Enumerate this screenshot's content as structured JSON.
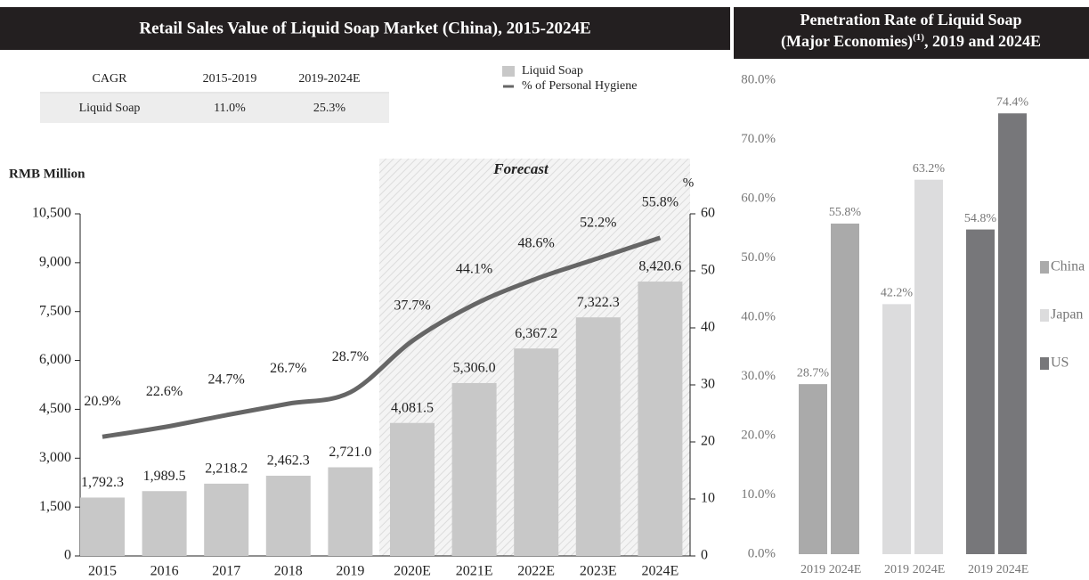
{
  "chart_data": [
    {
      "type": "bar",
      "title": "Retail Sales Value of Liquid Soap Market (China), 2015-2024E",
      "y_label": "RMB Million",
      "y2_label": "%",
      "annotation": "Forecast",
      "categories": [
        "2015",
        "2016",
        "2017",
        "2018",
        "2019",
        "2020E",
        "2021E",
        "2022E",
        "2023E",
        "2024E"
      ],
      "series": [
        {
          "name": "Liquid Soap",
          "color": "#c8c8c8",
          "values": [
            1792.3,
            1989.5,
            2218.2,
            2462.3,
            2721.0,
            4081.5,
            5306.0,
            6367.2,
            7322.3,
            8420.6
          ],
          "value_labels": [
            "1,792.3",
            "1,989.5",
            "2,218.2",
            "2,462.3",
            "2,721.0",
            "4,081.5",
            "5,306.0",
            "6,367.2",
            "7,322.3",
            "8,420.6"
          ]
        },
        {
          "name": "% of Personal Hygiene",
          "type": "line",
          "axis": "y2",
          "color": "#666666",
          "values": [
            20.9,
            22.6,
            24.7,
            26.7,
            28.7,
            37.7,
            44.1,
            48.6,
            52.2,
            55.8
          ],
          "value_labels": [
            "20.9%",
            "22.6%",
            "24.7%",
            "26.7%",
            "28.7%",
            "37.7%",
            "44.1%",
            "48.6%",
            "52.2%",
            "55.8%"
          ]
        }
      ],
      "ylim": [
        0,
        10500
      ],
      "yticks": [
        0,
        {
          "value": 1500,
          "label": "1,500"
        },
        {
          "value": 3000,
          "label": "3,000"
        },
        {
          "value": 4500,
          "label": "4,500"
        },
        {
          "value": 6000,
          "label": "6,000"
        },
        {
          "value": 7500,
          "label": "7,500"
        },
        {
          "value": 9000,
          "label": "9,000"
        },
        {
          "value": 10500,
          "label": "10,500"
        }
      ],
      "y2lim": [
        0,
        60
      ],
      "y2ticks": [
        0,
        10,
        20,
        30,
        40,
        50,
        60
      ],
      "table": {
        "header": [
          "CAGR",
          "2015-2019",
          "2019-2024E"
        ],
        "rows": [
          [
            "Liquid Soap",
            "11.0%",
            "25.3%"
          ]
        ]
      }
    },
    {
      "type": "bar",
      "title": [
        "Penetration Rate of Liquid Soap",
        "(Major Economies)",
        "(1)",
        ", 2019 and 2024E"
      ],
      "categories": [
        "2019",
        "2024E"
      ],
      "series": [
        {
          "name": "China",
          "color": "#aaaaaa",
          "values": [
            28.7,
            55.8
          ],
          "value_labels": [
            "28.7%",
            "55.8%"
          ]
        },
        {
          "name": "Japan",
          "color": "#dcdcdd",
          "values": [
            42.2,
            63.2
          ],
          "value_labels": [
            "42.2%",
            "63.2%"
          ]
        },
        {
          "name": "US",
          "color": "#77777a",
          "values": [
            54.8,
            74.4
          ],
          "value_labels": [
            "54.8%",
            "74.4%"
          ]
        }
      ],
      "ylim": [
        0,
        80
      ],
      "yticks": [
        {
          "value": 0,
          "label": "0.0%"
        },
        {
          "value": 10,
          "label": "10.0%"
        },
        {
          "value": 20,
          "label": "20.0%"
        },
        {
          "value": 30,
          "label": "30.0%"
        },
        {
          "value": 40,
          "label": "40.0%"
        },
        {
          "value": 50,
          "label": "50.0%"
        },
        {
          "value": 60,
          "label": "60.0%"
        },
        {
          "value": 70,
          "label": "70.0%"
        },
        {
          "value": 80,
          "label": "80.0%"
        }
      ]
    }
  ]
}
